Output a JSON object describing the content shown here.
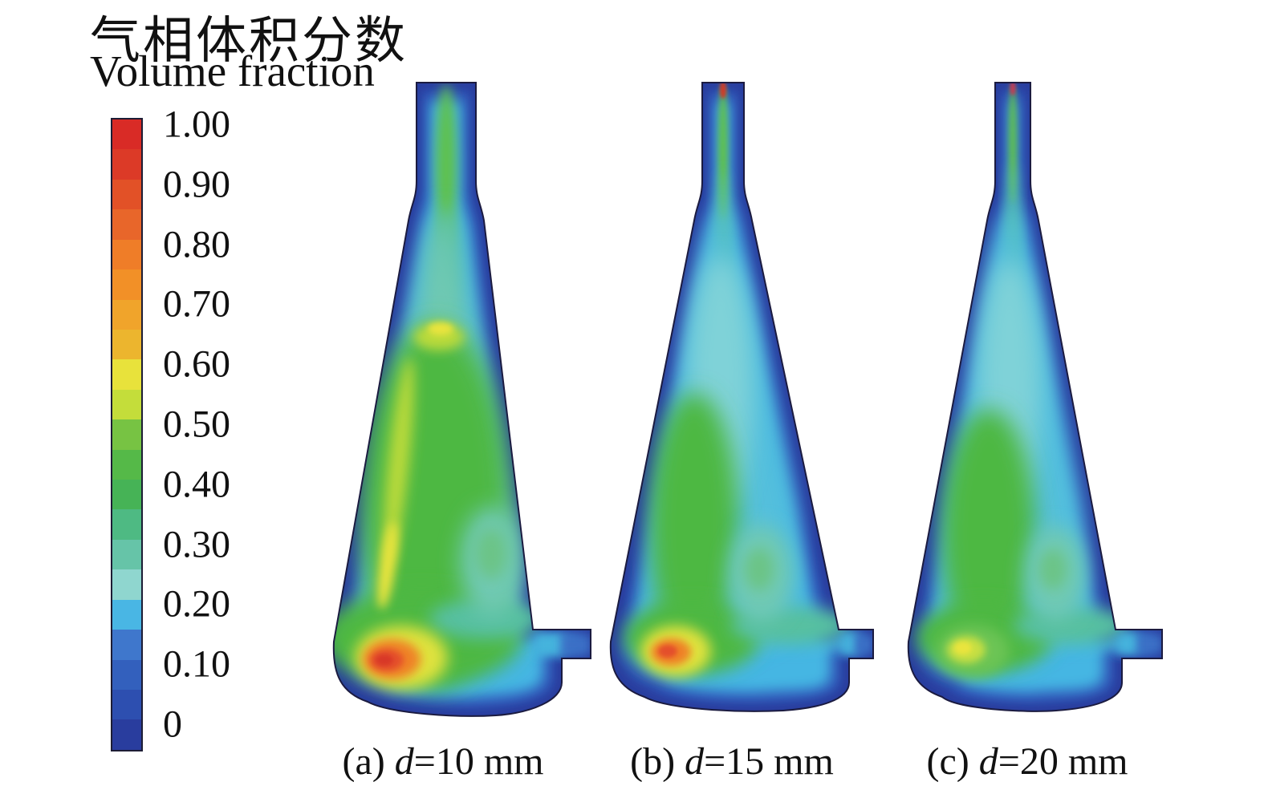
{
  "figure": {
    "title_zh": "气相体积分数",
    "title_en": "Volume fraction",
    "background": "#ffffff"
  },
  "colorbar": {
    "tick_labels": [
      "1.00",
      "0.90",
      "0.80",
      "0.70",
      "0.60",
      "0.50",
      "0.40",
      "0.30",
      "0.20",
      "0.10",
      "0"
    ],
    "band_colors": [
      "#d92b26",
      "#dc3a27",
      "#e25127",
      "#e8662a",
      "#ef7d28",
      "#f29027",
      "#f0a42b",
      "#ecb52e",
      "#e8e23b",
      "#c4dd3a",
      "#77c343",
      "#55b948",
      "#46b356",
      "#4eba83",
      "#66c4a8",
      "#8fd6cf",
      "#49b6e4",
      "#3f77cc",
      "#3360bd",
      "#2d4fb0",
      "#293d9e"
    ],
    "border_color": "#1d1d35"
  },
  "palette": {
    "navy": "#293d9e",
    "blue": "#2f55b7",
    "cyan": "#45b6e3",
    "paleCyan": "#85d2d6",
    "seafoam": "#6fc9b3",
    "tealGreen": "#57c0a0",
    "coreCyan": "#54c0dc",
    "paleCore": "#7fd2d8",
    "green": "#4db843",
    "brightGreen": "#5fc14e",
    "swirlGreen": "#6cc487",
    "yellowGreen": "#bada3b",
    "yellow": "#e9e43c",
    "orange": "#ef8227",
    "redOrange": "#e4502a",
    "red": "#d83826",
    "tipRed": "#d03a28",
    "tipMagenta": "#c23a55",
    "hotspotYellow": "#dfe23c",
    "hotspotYG": "#c8df42",
    "hotspotGreenHalo": "#6cc454",
    "pipeCyan": "#45b4dd",
    "pipeBlue": "#3a70c6",
    "outline": "#1b1b40"
  },
  "panels": [
    {
      "id": "a",
      "caption": {
        "pre": "(a) ",
        "var": "d",
        "post": "=10 mm"
      },
      "caption_full": "(a) d=10 mm"
    },
    {
      "id": "b",
      "caption": {
        "pre": "(b) ",
        "var": "d",
        "post": "=15 mm"
      },
      "caption_full": "(b) d=15 mm"
    },
    {
      "id": "c",
      "caption": {
        "pre": "(c) ",
        "var": "d",
        "post": "=20 mm"
      },
      "caption_full": "(c) d=20 mm"
    }
  ],
  "chart_data": {
    "type": "heatmap",
    "title": "气相体积分数 / Volume fraction",
    "subtitle": "Gas-phase volume fraction contours in a conical vessel for three nozzle diameters",
    "legend": {
      "label": "Volume fraction",
      "orientation": "vertical",
      "min": 0,
      "max": 1.0,
      "ticks": [
        1.0,
        0.9,
        0.8,
        0.7,
        0.6,
        0.5,
        0.4,
        0.3,
        0.2,
        0.1,
        0
      ],
      "band_interval": 0.05,
      "colormap": "rainbow, discrete bands (red=1.0 to dark blue=0)"
    },
    "panels": [
      {
        "caption": "(a) d=10 mm",
        "d_mm": 10,
        "readings": {
          "wall_boundary_layer": 0.0,
          "upper_cone_core": 0.35,
          "central_green_region": 0.5,
          "plume_edge_peak": 0.65,
          "bottom_left_hotspot_peak": 0.9,
          "top_tube_jet": 0.5,
          "outlet_pipe": 0.2
        }
      },
      {
        "caption": "(b) d=15 mm",
        "d_mm": 15,
        "readings": {
          "wall_boundary_layer": 0.0,
          "upper_cone_core": 0.25,
          "central_green_region": 0.45,
          "bottom_left_hotspot_peak": 0.85,
          "top_tube_jet": 0.45,
          "tube_tip": 1.0,
          "outlet_pipe": 0.2
        }
      },
      {
        "caption": "(c) d=20 mm",
        "d_mm": 20,
        "readings": {
          "wall_boundary_layer": 0.0,
          "upper_cone_core": 0.25,
          "central_green_region": 0.45,
          "bottom_left_hotspot_peak": 0.65,
          "top_tube_jet": 0.45,
          "tube_tip": 1.0,
          "outlet_pipe": 0.15
        }
      }
    ]
  }
}
